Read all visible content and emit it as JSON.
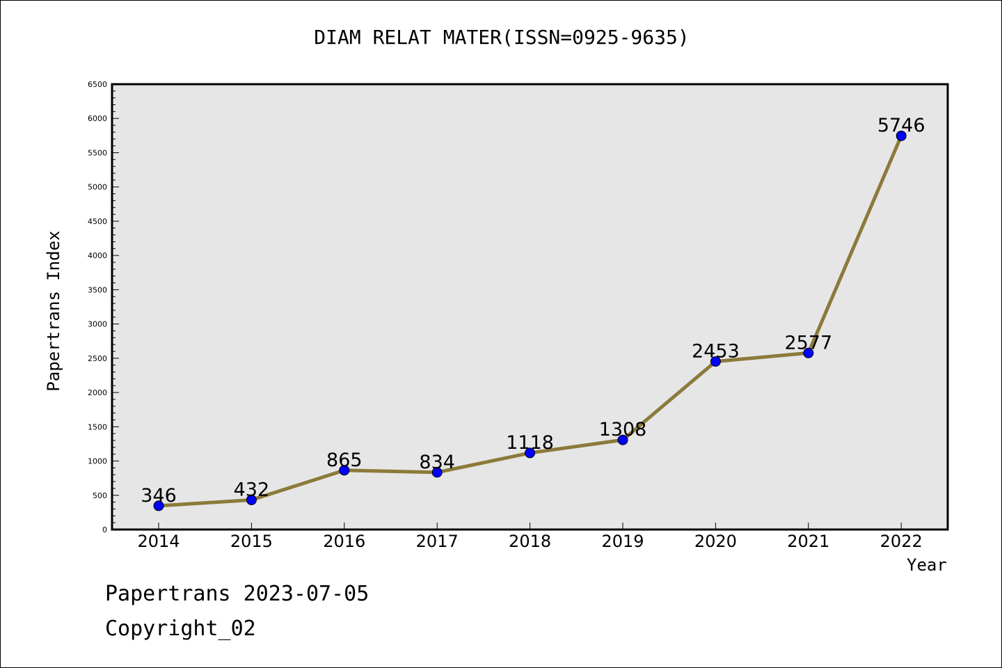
{
  "chart_data": {
    "type": "line",
    "title": "DIAM RELAT MATER(ISSN=0925-9635)",
    "xlabel": "Year",
    "ylabel": "Papertrans Index",
    "categories": [
      "2014",
      "2015",
      "2016",
      "2017",
      "2018",
      "2019",
      "2020",
      "2021",
      "2022"
    ],
    "series": [
      {
        "values": [
          346,
          432,
          865,
          834,
          1118,
          1308,
          2453,
          2577,
          5746
        ]
      }
    ],
    "ylim": [
      0,
      6500
    ],
    "yticks": [
      0,
      500,
      1000,
      1500,
      2000,
      2500,
      3000,
      3500,
      4000,
      4500,
      5000,
      5500,
      6000,
      6500
    ],
    "grid": false,
    "line_color": "#8b7a3a",
    "marker_color": "#0000ff",
    "plot_background": "#e6e6e6"
  },
  "footer": {
    "date_line": "Papertrans 2023-07-05",
    "copyright": "Copyright_02"
  }
}
